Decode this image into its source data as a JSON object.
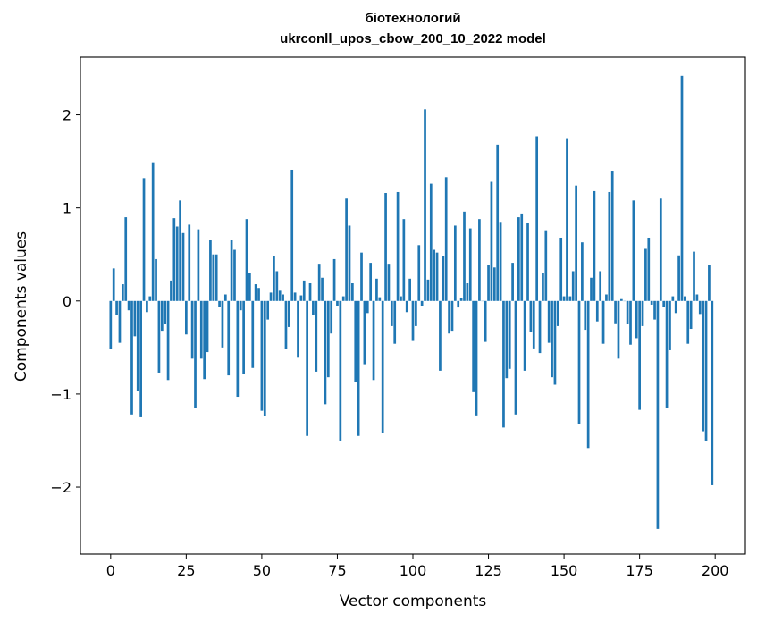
{
  "chart_data": {
    "type": "bar",
    "title_line1": "біотехнологий",
    "title_line2": "ukrconll_upos_cbow_200_10_2022 model",
    "xlabel": "Vector components",
    "ylabel": "Components values",
    "xlim": [
      -10,
      210
    ],
    "ylim": [
      -2.72,
      2.62
    ],
    "xticks": [
      0,
      25,
      50,
      75,
      100,
      125,
      150,
      175,
      200
    ],
    "xtick_labels": [
      "0",
      "25",
      "50",
      "75",
      "100",
      "125",
      "150",
      "175",
      "200"
    ],
    "yticks": [
      -2,
      -1,
      0,
      1,
      2
    ],
    "ytick_labels": [
      "−2",
      "−1",
      "0",
      "1",
      "2"
    ],
    "grid": false,
    "bar_color": "#1f77b4",
    "values": [
      -0.52,
      0.35,
      -0.15,
      -0.45,
      0.18,
      0.9,
      -0.1,
      -1.22,
      -0.38,
      -0.97,
      -1.25,
      1.32,
      -0.12,
      0.05,
      1.49,
      0.45,
      -0.77,
      -0.32,
      -0.25,
      -0.85,
      0.22,
      0.89,
      0.8,
      1.08,
      0.73,
      -0.36,
      0.82,
      -0.62,
      -1.15,
      0.77,
      -0.62,
      -0.84,
      -0.55,
      0.66,
      0.5,
      0.5,
      -0.06,
      -0.5,
      0.07,
      -0.8,
      0.66,
      0.55,
      -1.03,
      -0.1,
      -0.78,
      0.88,
      0.3,
      -0.72,
      0.18,
      0.14,
      -1.18,
      -1.24,
      -0.2,
      0.09,
      0.48,
      0.32,
      0.11,
      0.07,
      -0.52,
      -0.28,
      1.41,
      0.09,
      -0.61,
      0.06,
      0.22,
      -1.45,
      0.19,
      -0.15,
      -0.76,
      0.4,
      0.25,
      -1.11,
      -0.82,
      -0.35,
      0.45,
      -0.05,
      -1.5,
      0.05,
      1.1,
      0.81,
      0.19,
      -0.87,
      -1.45,
      0.52,
      -0.68,
      -0.13,
      0.41,
      -0.85,
      0.24,
      0.04,
      -1.42,
      1.16,
      0.4,
      -0.27,
      -0.46,
      1.17,
      0.05,
      0.88,
      -0.12,
      0.24,
      -0.43,
      -0.27,
      0.6,
      -0.05,
      2.06,
      0.23,
      1.26,
      0.55,
      0.52,
      -0.75,
      0.48,
      1.33,
      -0.35,
      -0.32,
      0.81,
      -0.07,
      0.03,
      0.96,
      0.19,
      0.78,
      -0.98,
      -1.23,
      0.88,
      0.0,
      -0.44,
      0.39,
      1.28,
      0.36,
      1.68,
      0.85,
      -1.36,
      -0.83,
      -0.73,
      0.41,
      -1.22,
      0.9,
      0.94,
      -0.75,
      0.84,
      -0.33,
      -0.51,
      1.77,
      -0.56,
      0.3,
      0.76,
      -0.45,
      -0.82,
      -0.9,
      -0.27,
      0.68,
      0.05,
      1.75,
      0.05,
      0.32,
      1.24,
      -1.32,
      0.63,
      -0.31,
      -1.58,
      0.25,
      1.18,
      -0.22,
      0.32,
      -0.46,
      0.07,
      1.17,
      1.4,
      -0.24,
      -0.62,
      0.02,
      0.0,
      -0.25,
      -0.47,
      1.08,
      -0.4,
      -1.17,
      -0.27,
      0.56,
      0.68,
      -0.04,
      -0.2,
      -2.45,
      1.1,
      -0.06,
      -1.15,
      -0.53,
      0.05,
      -0.13,
      0.49,
      2.42,
      0.05,
      -0.46,
      -0.3,
      0.53,
      0.07,
      -0.14,
      -1.4,
      -1.5,
      0.39,
      -1.98
    ]
  }
}
